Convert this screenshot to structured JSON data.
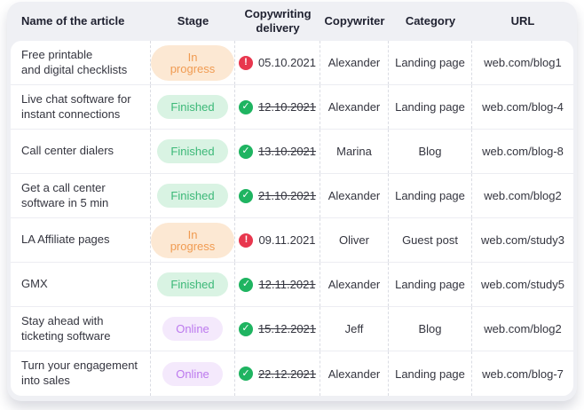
{
  "colors": {
    "card_bg": "#EFF0F4",
    "panel_bg": "#FFFFFF",
    "header_text": "#1F2130",
    "body_text": "#34353F",
    "row_divider": "#ECEDF2",
    "column_divider": "#DADCE3",
    "check_icon": "#1FB461",
    "alert_icon": "#E8374E",
    "stage_styles": {
      "in-progress": {
        "bg": "#FCE8D3",
        "text": "#F09B52"
      },
      "finished": {
        "bg": "#D9F3E3",
        "text": "#3CB878"
      },
      "online": {
        "bg": "#F4E9FC",
        "text": "#BC79EE"
      }
    }
  },
  "table": {
    "columns": [
      "Name of the article",
      "Stage",
      "Copywriting\ndelivery",
      "Copywriter",
      "Category",
      "URL"
    ],
    "rows": [
      {
        "name": "Free printable\nand digital checklists",
        "stage": {
          "label": "In progress",
          "type": "in-progress"
        },
        "delivery": {
          "date": "05.10.2021",
          "status": "alert"
        },
        "copywriter": "Alexander",
        "category": "Landing page",
        "url": "web.com/blog1"
      },
      {
        "name": "Live chat software for\ninstant connections",
        "stage": {
          "label": "Finished",
          "type": "finished"
        },
        "delivery": {
          "date": "12.10.2021",
          "status": "done"
        },
        "copywriter": "Alexander",
        "category": "Landing page",
        "url": "web.com/blog-4"
      },
      {
        "name": "Call center dialers",
        "stage": {
          "label": "Finished",
          "type": "finished"
        },
        "delivery": {
          "date": "13.10.2021",
          "status": "done"
        },
        "copywriter": "Marina",
        "category": "Blog",
        "url": "web.com/blog-8"
      },
      {
        "name": "Get a call center\nsoftware in 5 min",
        "stage": {
          "label": "Finished",
          "type": "finished"
        },
        "delivery": {
          "date": "21.10.2021",
          "status": "done"
        },
        "copywriter": "Alexander",
        "category": "Landing page",
        "url": "web.com/blog2"
      },
      {
        "name": "LA Affiliate pages",
        "stage": {
          "label": "In progress",
          "type": "in-progress"
        },
        "delivery": {
          "date": "09.11.2021",
          "status": "alert"
        },
        "copywriter": "Oliver",
        "category": "Guest post",
        "url": "web.com/study3"
      },
      {
        "name": "GMX",
        "stage": {
          "label": "Finished",
          "type": "finished"
        },
        "delivery": {
          "date": "12.11.2021",
          "status": "done"
        },
        "copywriter": "Alexander",
        "category": "Landing page",
        "url": "web.com/study5"
      },
      {
        "name": "Stay ahead with\nticketing software",
        "stage": {
          "label": "Online",
          "type": "online"
        },
        "delivery": {
          "date": "15.12.2021",
          "status": "done"
        },
        "copywriter": "Jeff",
        "category": "Blog",
        "url": "web.com/blog2"
      },
      {
        "name": "Turn your engagement\ninto sales",
        "stage": {
          "label": "Online",
          "type": "online"
        },
        "delivery": {
          "date": "22.12.2021",
          "status": "done"
        },
        "copywriter": "Alexander",
        "category": "Landing page",
        "url": "web.com/blog-7"
      }
    ]
  }
}
